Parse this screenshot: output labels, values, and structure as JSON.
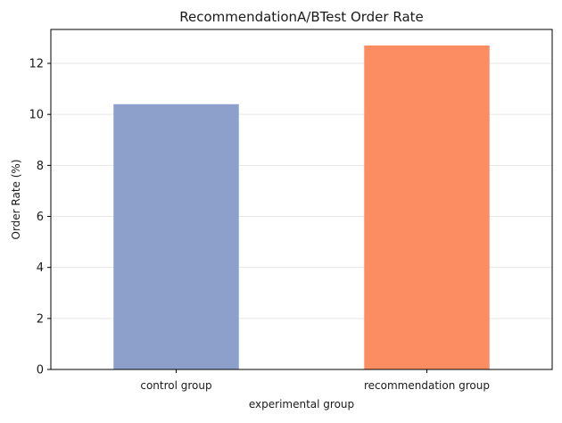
{
  "chart_data": {
    "type": "bar",
    "title": "RecommendationA/BTest Order Rate",
    "xlabel": "experimental group",
    "ylabel": "Order Rate (%)",
    "categories": [
      "control group",
      "recommendation group"
    ],
    "values": [
      10.4,
      12.7
    ],
    "colors": [
      "#8da0cb",
      "#fc8d62"
    ],
    "ylim": [
      0,
      13.33
    ],
    "yticks": [
      0,
      2,
      4,
      6,
      8,
      10,
      12
    ],
    "grid": "y-axis horizontal, light gray",
    "legend": "none"
  }
}
